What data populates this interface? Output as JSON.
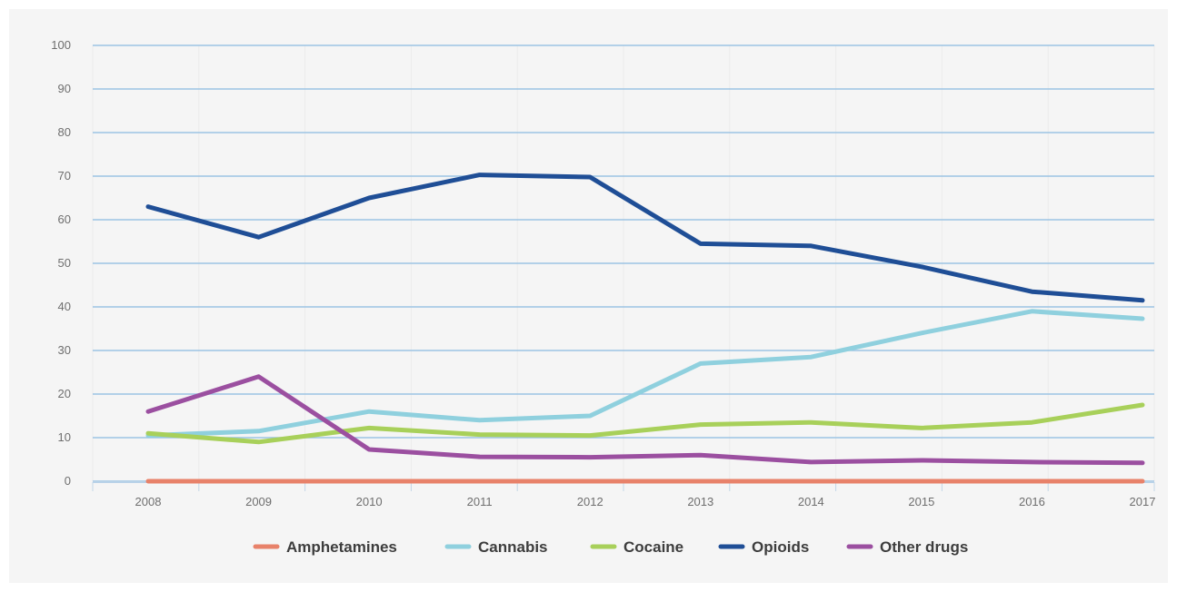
{
  "chart_data": {
    "type": "line",
    "title": "",
    "xlabel": "",
    "ylabel": "",
    "x": [
      "2008",
      "2009",
      "2010",
      "2011",
      "2012",
      "2013",
      "2014",
      "2015",
      "2016",
      "2017"
    ],
    "ylim": [
      0,
      100
    ],
    "yticks": [
      0,
      10,
      20,
      30,
      40,
      50,
      60,
      70,
      80,
      90,
      100
    ],
    "grid": true,
    "legend_position": "bottom",
    "series": [
      {
        "name": "Amphetamines",
        "color": "#e8826a",
        "values": [
          0,
          0,
          0,
          0,
          0,
          0,
          0,
          0,
          0,
          0
        ]
      },
      {
        "name": "Cannabis",
        "color": "#8fd0de",
        "values": [
          10.5,
          11.5,
          16,
          14,
          15,
          27,
          28.5,
          34,
          39,
          37.3
        ]
      },
      {
        "name": "Cocaine",
        "color": "#a8d05a",
        "values": [
          11,
          9,
          12.2,
          10.7,
          10.5,
          13,
          13.5,
          12.2,
          13.5,
          17.5
        ]
      },
      {
        "name": "Opioids",
        "color": "#1f4e96",
        "values": [
          63,
          56,
          65,
          70.3,
          69.8,
          54.5,
          54,
          49.2,
          43.5,
          41.5
        ]
      },
      {
        "name": "Other drugs",
        "color": "#9b4fa0",
        "values": [
          16,
          24,
          7.3,
          5.6,
          5.5,
          6,
          4.4,
          4.8,
          4.4,
          4.2
        ]
      }
    ]
  }
}
